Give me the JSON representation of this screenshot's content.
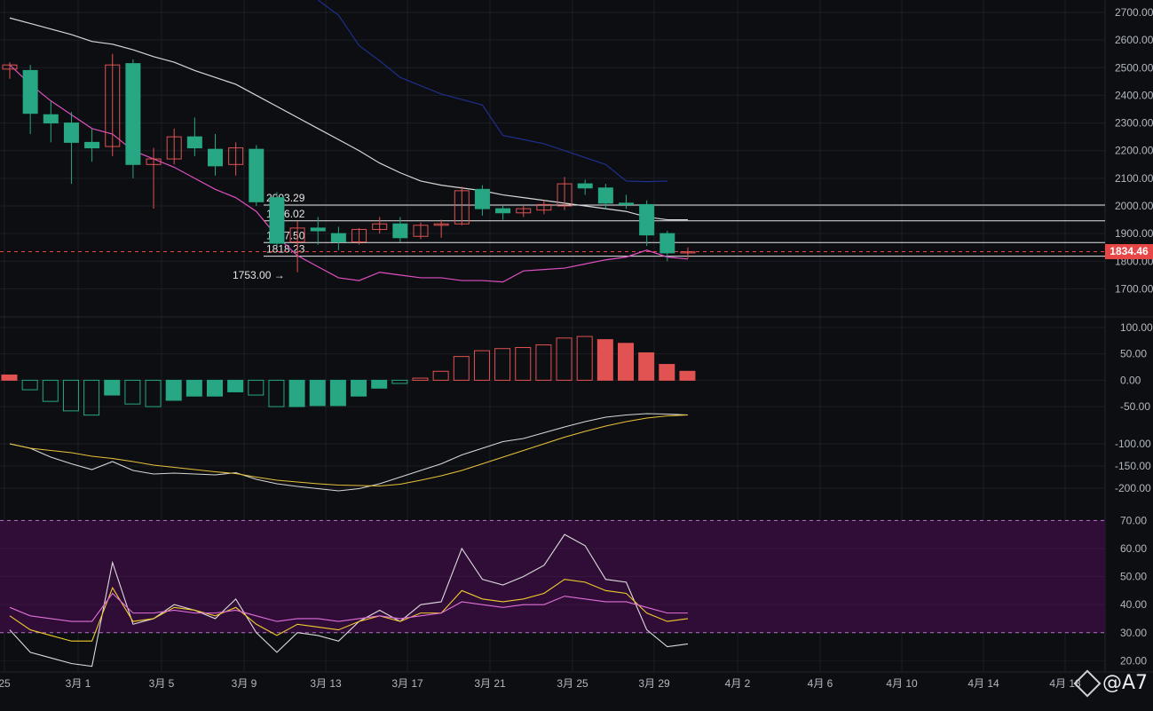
{
  "theme": {
    "background": "#0c0e12",
    "grid": "#1c1f26",
    "up": "#e15252",
    "down": "#27a783",
    "axis_text": "#b3b8c0",
    "ma_white": "#d7d7d7",
    "ma_pink": "#e04fc0",
    "ma_blue": "#1f2f8a",
    "macd_signal": "#e9c23a",
    "rsi_white": "#dcdcdc",
    "rsi_yellow": "#f0cc2e",
    "rsi_pink": "#e070d8",
    "rsi_band": "#2f0d37",
    "price_tag_bg": "#e74646"
  },
  "x_axis": {
    "labels": [
      "25",
      "3月 1",
      "3月 5",
      "3月 9",
      "3月 13",
      "3月 17",
      "3月 21",
      "3月 25",
      "3月 29",
      "4月 2",
      "4月 6",
      "4月 10",
      "4月 14",
      "4月 18"
    ]
  },
  "price_tag": "1834.46",
  "watermark": "@A7",
  "chart_data": [
    {
      "type": "candlestick",
      "pane": "price",
      "y_ticks": [
        "2700.00",
        "2600.00",
        "2500.00",
        "2400.00",
        "2300.00",
        "2200.00",
        "2100.00",
        "2000.00",
        "1900.00",
        "1800.00",
        "1700.00"
      ],
      "ylim": [
        1605,
        2745
      ],
      "candles": [
        {
          "o": 2495,
          "h": 2520,
          "l": 2460,
          "c": 2510
        },
        {
          "o": 2490,
          "h": 2510,
          "l": 2260,
          "c": 2335
        },
        {
          "o": 2330,
          "h": 2380,
          "l": 2230,
          "c": 2300
        },
        {
          "o": 2300,
          "h": 2340,
          "l": 2080,
          "c": 2230
        },
        {
          "o": 2230,
          "h": 2280,
          "l": 2160,
          "c": 2210
        },
        {
          "o": 2215,
          "h": 2550,
          "l": 2180,
          "c": 2510
        },
        {
          "o": 2515,
          "h": 2530,
          "l": 2100,
          "c": 2150
        },
        {
          "o": 2150,
          "h": 2210,
          "l": 1990,
          "c": 2170
        },
        {
          "o": 2170,
          "h": 2280,
          "l": 2150,
          "c": 2250
        },
        {
          "o": 2250,
          "h": 2320,
          "l": 2180,
          "c": 2210
        },
        {
          "o": 2205,
          "h": 2260,
          "l": 2110,
          "c": 2145
        },
        {
          "o": 2150,
          "h": 2230,
          "l": 2110,
          "c": 2210
        },
        {
          "o": 2205,
          "h": 2220,
          "l": 2000,
          "c": 2015
        },
        {
          "o": 2030,
          "h": 2050,
          "l": 1855,
          "c": 1865
        },
        {
          "o": 1870,
          "h": 1945,
          "l": 1760,
          "c": 1920
        },
        {
          "o": 1920,
          "h": 1960,
          "l": 1860,
          "c": 1910
        },
        {
          "o": 1900,
          "h": 1925,
          "l": 1840,
          "c": 1870
        },
        {
          "o": 1870,
          "h": 1920,
          "l": 1860,
          "c": 1915
        },
        {
          "o": 1915,
          "h": 1960,
          "l": 1900,
          "c": 1935
        },
        {
          "o": 1935,
          "h": 1960,
          "l": 1870,
          "c": 1885
        },
        {
          "o": 1890,
          "h": 1940,
          "l": 1880,
          "c": 1930
        },
        {
          "o": 1930,
          "h": 1950,
          "l": 1885,
          "c": 1935
        },
        {
          "o": 1935,
          "h": 2070,
          "l": 1930,
          "c": 2055
        },
        {
          "o": 2060,
          "h": 2075,
          "l": 1965,
          "c": 1990
        },
        {
          "o": 1990,
          "h": 2000,
          "l": 1950,
          "c": 1975
        },
        {
          "o": 1975,
          "h": 2000,
          "l": 1960,
          "c": 1990
        },
        {
          "o": 1985,
          "h": 2020,
          "l": 1970,
          "c": 2005
        },
        {
          "o": 2000,
          "h": 2105,
          "l": 1985,
          "c": 2080
        },
        {
          "o": 2080,
          "h": 2095,
          "l": 2040,
          "c": 2065
        },
        {
          "o": 2065,
          "h": 2080,
          "l": 1990,
          "c": 2010
        },
        {
          "o": 2010,
          "h": 2040,
          "l": 1990,
          "c": 2005
        },
        {
          "o": 2005,
          "h": 2020,
          "l": 1855,
          "c": 1895
        },
        {
          "o": 1900,
          "h": 1910,
          "l": 1800,
          "c": 1830
        },
        {
          "o": 1830,
          "h": 1850,
          "l": 1810,
          "c": 1834
        }
      ],
      "ma_white": [
        [
          0,
          2680
        ],
        [
          1,
          2660
        ],
        [
          2,
          2640
        ],
        [
          3,
          2620
        ],
        [
          4,
          2595
        ],
        [
          5,
          2585
        ],
        [
          6,
          2565
        ],
        [
          7,
          2540
        ],
        [
          8,
          2520
        ],
        [
          9,
          2490
        ],
        [
          10,
          2465
        ],
        [
          11,
          2440
        ],
        [
          12,
          2400
        ],
        [
          13,
          2360
        ],
        [
          14,
          2320
        ],
        [
          15,
          2280
        ],
        [
          16,
          2240
        ],
        [
          17,
          2200
        ],
        [
          18,
          2155
        ],
        [
          19,
          2120
        ],
        [
          20,
          2090
        ],
        [
          21,
          2075
        ],
        [
          22,
          2065
        ],
        [
          23,
          2055
        ],
        [
          24,
          2040
        ],
        [
          25,
          2030
        ],
        [
          26,
          2020
        ],
        [
          27,
          2010
        ],
        [
          28,
          2000
        ],
        [
          29,
          1990
        ],
        [
          30,
          1980
        ],
        [
          31,
          1960
        ],
        [
          32,
          1950
        ],
        [
          33,
          1950
        ]
      ],
      "ma_pink": [
        [
          0,
          2510
        ],
        [
          1,
          2440
        ],
        [
          2,
          2380
        ],
        [
          3,
          2330
        ],
        [
          4,
          2280
        ],
        [
          5,
          2260
        ],
        [
          6,
          2200
        ],
        [
          7,
          2170
        ],
        [
          8,
          2140
        ],
        [
          9,
          2100
        ],
        [
          10,
          2060
        ],
        [
          11,
          2030
        ],
        [
          12,
          1980
        ],
        [
          13,
          1890
        ],
        [
          14,
          1820
        ],
        [
          15,
          1780
        ],
        [
          16,
          1740
        ],
        [
          17,
          1730
        ],
        [
          18,
          1760
        ],
        [
          19,
          1750
        ],
        [
          20,
          1740
        ],
        [
          21,
          1740
        ],
        [
          22,
          1730
        ],
        [
          23,
          1730
        ],
        [
          24,
          1725
        ],
        [
          25,
          1765
        ],
        [
          26,
          1770
        ],
        [
          27,
          1775
        ],
        [
          28,
          1790
        ],
        [
          29,
          1805
        ],
        [
          30,
          1815
        ],
        [
          31,
          1840
        ],
        [
          32,
          1815
        ],
        [
          33,
          1808
        ]
      ],
      "ma_blue": [
        [
          15,
          2745
        ],
        [
          16,
          2690
        ],
        [
          17,
          2580
        ],
        [
          18,
          2525
        ],
        [
          19,
          2465
        ],
        [
          20,
          2435
        ],
        [
          21,
          2405
        ],
        [
          22,
          2385
        ],
        [
          23,
          2365
        ],
        [
          24,
          2255
        ],
        [
          25,
          2240
        ],
        [
          26,
          2225
        ],
        [
          27,
          2200
        ],
        [
          28,
          2175
        ],
        [
          29,
          2150
        ],
        [
          30,
          2090
        ],
        [
          31,
          2088
        ],
        [
          32,
          2090
        ]
      ],
      "h_lines": [
        {
          "label": "2003.29",
          "value": 2003.29
        },
        {
          "label": "1946.02",
          "value": 1946.02
        },
        {
          "label": "1867.50",
          "value": 1867.5
        },
        {
          "label": "1818.23",
          "value": 1818.23
        }
      ],
      "min_label": "1753.00 →",
      "last_price": 1834.46
    },
    {
      "type": "bar",
      "pane": "macd_histogram",
      "y_ticks": [
        "100.00",
        "50.00",
        "0.00",
        "-50.00"
      ],
      "ylim": [
        -70,
        110
      ],
      "values": [
        10,
        -18,
        -40,
        -58,
        -66,
        -28,
        -45,
        -50,
        -38,
        -30,
        -30,
        -22,
        -28,
        -50,
        -50,
        -48,
        -48,
        -30,
        -15,
        -6,
        4,
        17,
        45,
        56,
        60,
        62,
        67,
        80,
        83,
        77,
        70,
        52,
        30,
        17
      ],
      "filled": [
        true,
        false,
        false,
        false,
        false,
        true,
        false,
        false,
        true,
        true,
        true,
        true,
        false,
        false,
        true,
        true,
        true,
        true,
        true,
        false,
        false,
        false,
        false,
        false,
        false,
        false,
        false,
        false,
        false,
        true,
        true,
        true,
        true,
        true
      ]
    },
    {
      "type": "line",
      "pane": "macd_lines",
      "y_ticks": [
        "-100.00",
        "-150.00",
        "-200.00"
      ],
      "ylim": [
        -230,
        -40
      ],
      "series": [
        {
          "name": "",
          "values": [
            -100,
            -110,
            -130,
            -145,
            -158,
            -140,
            -160,
            -168,
            -166,
            -168,
            -170,
            -165,
            -180,
            -190,
            -196,
            -201,
            -206,
            -201,
            -190,
            -175,
            -160,
            -145,
            -125,
            -110,
            -95,
            -88,
            -75,
            -62,
            -50,
            -40,
            -35,
            -32,
            -33,
            -35
          ]
        },
        {
          "name": "",
          "values": [
            -100,
            -110,
            -115,
            -120,
            -128,
            -133,
            -140,
            -148,
            -153,
            -158,
            -163,
            -167,
            -175,
            -182,
            -186,
            -190,
            -193,
            -194,
            -195,
            -191,
            -182,
            -172,
            -160,
            -145,
            -130,
            -115,
            -100,
            -85,
            -72,
            -60,
            -50,
            -42,
            -37,
            -35
          ]
        }
      ]
    },
    {
      "type": "line",
      "pane": "rsi",
      "y_ticks": [
        "70.00",
        "60.00",
        "50.00",
        "40.00",
        "30.00",
        "20.00"
      ],
      "ylim": [
        16,
        72
      ],
      "band": [
        30,
        70
      ],
      "series": [
        {
          "name": "",
          "values": [
            31,
            23,
            21,
            19,
            18,
            55,
            33,
            35,
            40,
            38,
            35,
            42,
            30,
            23,
            30,
            29,
            27,
            34,
            38,
            34,
            40,
            41,
            60,
            49,
            47,
            50,
            54,
            65,
            61,
            49,
            48,
            31,
            25,
            26
          ]
        },
        {
          "name": "",
          "values": [
            36,
            31,
            29,
            27,
            27,
            46,
            34,
            35,
            39,
            38,
            36,
            39,
            33,
            29,
            33,
            32,
            31,
            34,
            36,
            34,
            37,
            37,
            45,
            42,
            41,
            42,
            44,
            49,
            48,
            45,
            44,
            37,
            34,
            35
          ]
        },
        {
          "name": "",
          "values": [
            39,
            36,
            35,
            34,
            34,
            44,
            37,
            37,
            38,
            37,
            37,
            38,
            36,
            34,
            35,
            35,
            34,
            35,
            36,
            35,
            36,
            37,
            41,
            40,
            39,
            40,
            40,
            43,
            42,
            41,
            41,
            39,
            37,
            37
          ]
        }
      ]
    }
  ]
}
